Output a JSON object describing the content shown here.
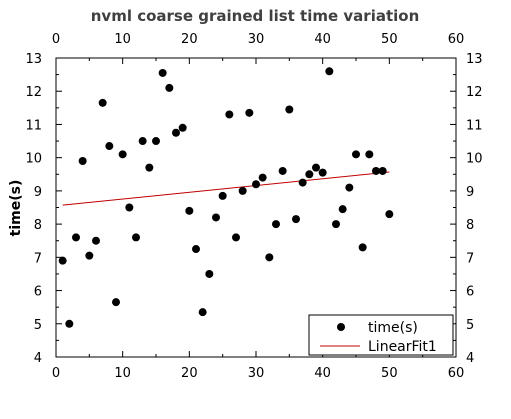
{
  "chart_data": {
    "type": "scatter",
    "title": "nvml coarse grained list time variation",
    "xlabel": "",
    "ylabel": "time(s)",
    "xlim": [
      0,
      60
    ],
    "ylim": [
      4,
      13
    ],
    "x_ticks": [
      0,
      10,
      20,
      30,
      40,
      50,
      60
    ],
    "y_ticks": [
      4,
      5,
      6,
      7,
      8,
      9,
      10,
      11,
      12,
      13
    ],
    "grid": false,
    "legend_position": "bottom-right",
    "series": [
      {
        "name": "time(s)",
        "type": "scatter",
        "color": "#000000",
        "x": [
          1,
          2,
          3,
          4,
          5,
          6,
          7,
          8,
          9,
          10,
          11,
          12,
          13,
          14,
          15,
          16,
          17,
          18,
          19,
          20,
          21,
          22,
          23,
          24,
          25,
          26,
          27,
          28,
          29,
          30,
          31,
          32,
          33,
          34,
          35,
          36,
          37,
          38,
          39,
          40,
          41,
          42,
          43,
          44,
          45,
          46,
          47,
          48,
          49,
          50
        ],
        "y": [
          6.9,
          5.0,
          7.6,
          9.9,
          7.05,
          7.5,
          11.65,
          10.35,
          5.65,
          10.1,
          8.5,
          7.6,
          10.5,
          9.7,
          10.5,
          12.55,
          12.1,
          10.75,
          10.9,
          8.4,
          7.25,
          5.35,
          6.5,
          8.2,
          8.85,
          11.3,
          7.6,
          9.0,
          11.35,
          9.2,
          9.4,
          7.0,
          8.0,
          9.6,
          11.45,
          8.15,
          9.25,
          9.5,
          9.7,
          9.55,
          12.6,
          8.0,
          8.45,
          9.1,
          10.1,
          7.3,
          10.1,
          9.6,
          9.6,
          8.3
        ]
      },
      {
        "name": "LinearFit1",
        "type": "line",
        "color": "#c00000",
        "x": [
          1,
          50
        ],
        "y": [
          8.57,
          9.57
        ]
      }
    ]
  }
}
